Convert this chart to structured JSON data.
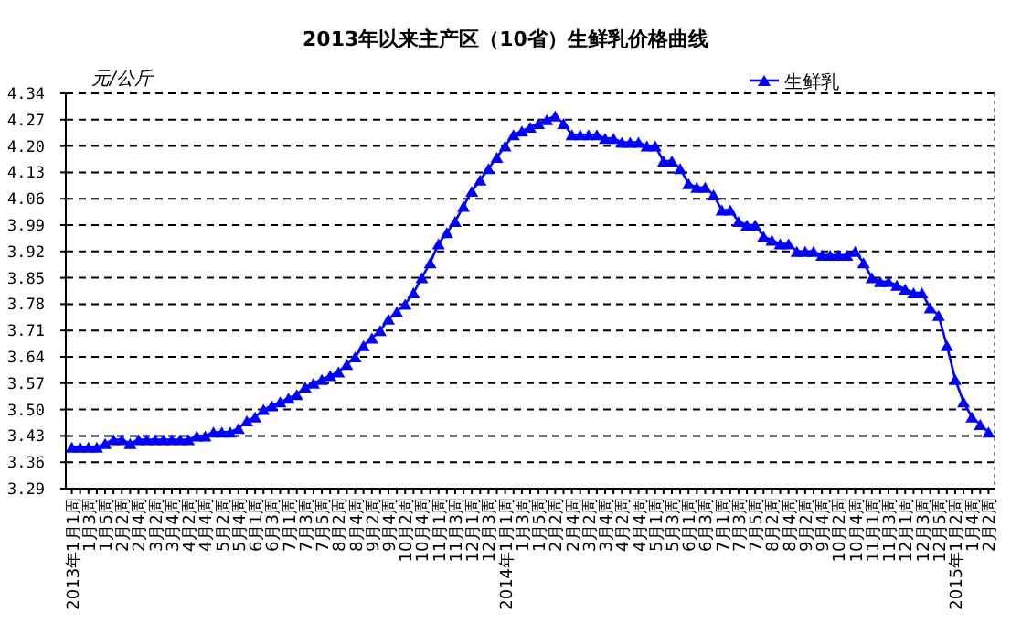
{
  "chart_data": {
    "type": "line",
    "title": "2013年以来主产区（10省）生鲜乳价格曲线",
    "ylabel": "元/公斤",
    "categories": [
      "2013年1月1周",
      null,
      "1月3周",
      null,
      "1月5周",
      null,
      "2月2周",
      null,
      "2月4周",
      null,
      "3月2周",
      null,
      "3月4周",
      null,
      "4月2周",
      null,
      "4月4周",
      null,
      "5月2周",
      null,
      "5月4周",
      null,
      "6月1周",
      null,
      "6月3周",
      null,
      "7月1周",
      null,
      "7月3周",
      null,
      "7月5周",
      null,
      "8月2周",
      null,
      "8月4周",
      null,
      "9月2周",
      null,
      "9月4周",
      null,
      "10月2周",
      null,
      "10月4周",
      null,
      "11月1周",
      null,
      "11月3周",
      null,
      "12月1周",
      null,
      "12月3周",
      null,
      "2014年1月1周",
      null,
      "1月3周",
      null,
      "1月5周",
      null,
      "2月2周",
      null,
      "2月4周",
      null,
      "3月2周",
      null,
      "3月4周",
      null,
      "4月2周",
      null,
      "4月4周",
      null,
      "5月1周",
      null,
      "5月3周",
      null,
      "6月1周",
      null,
      "6月3周",
      null,
      "7月1周",
      null,
      "7月3周",
      null,
      "7月5周",
      null,
      "8月2周",
      null,
      "8月4周",
      null,
      "9月2周",
      null,
      "9月4周",
      null,
      "10月2周",
      null,
      "10月4周",
      null,
      "11月1周",
      null,
      "11月3周",
      null,
      "12月1周",
      null,
      "12月3周",
      null,
      "12月5周",
      null,
      "2015年1月2周",
      null,
      "1月4周",
      null,
      "2月2周"
    ],
    "series": [
      {
        "name": "生鲜乳",
        "color": "#0000ff",
        "values": [
          3.4,
          3.4,
          3.4,
          3.4,
          3.41,
          3.42,
          3.42,
          3.41,
          3.42,
          3.42,
          3.42,
          3.42,
          3.42,
          3.42,
          3.42,
          3.43,
          3.43,
          3.44,
          3.44,
          3.44,
          3.45,
          3.47,
          3.48,
          3.5,
          3.51,
          3.52,
          3.53,
          3.54,
          3.56,
          3.57,
          3.58,
          3.59,
          3.6,
          3.62,
          3.64,
          3.67,
          3.69,
          3.71,
          3.74,
          3.76,
          3.78,
          3.81,
          3.85,
          3.89,
          3.94,
          3.97,
          4.0,
          4.04,
          4.08,
          4.11,
          4.14,
          4.17,
          4.2,
          4.23,
          4.24,
          4.25,
          4.26,
          4.27,
          4.28,
          4.26,
          4.23,
          4.23,
          4.23,
          4.23,
          4.22,
          4.22,
          4.21,
          4.21,
          4.21,
          4.2,
          4.2,
          4.16,
          4.16,
          4.14,
          4.1,
          4.09,
          4.09,
          4.07,
          4.03,
          4.03,
          4.0,
          3.99,
          3.99,
          3.96,
          3.95,
          3.94,
          3.94,
          3.92,
          3.92,
          3.92,
          3.91,
          3.91,
          3.91,
          3.91,
          3.92,
          3.89,
          3.85,
          3.84,
          3.84,
          3.83,
          3.82,
          3.81,
          3.81,
          3.77,
          3.75,
          3.67,
          3.58,
          3.52,
          3.48,
          3.46,
          3.44
        ]
      }
    ],
    "ylim": [
      3.29,
      4.34
    ],
    "yticks": [
      3.29,
      3.36,
      3.43,
      {
        "value": 3.5,
        "label": "3.50"
      },
      3.57,
      3.64,
      3.71,
      3.78,
      3.85,
      3.92,
      3.99,
      4.06,
      4.13,
      {
        "value": 4.2,
        "label": "4.20"
      },
      4.27,
      4.34
    ],
    "grid": "y",
    "legend": "top right",
    "marker": "triangle",
    "line_style": "solid"
  }
}
